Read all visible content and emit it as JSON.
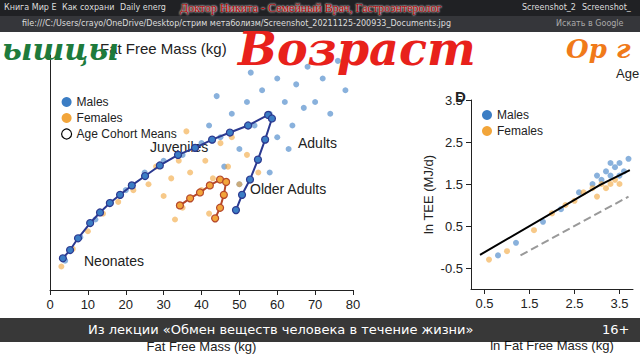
{
  "chart_data": [
    {
      "type": "scatter",
      "title": "Fat Free Mass (kg)",
      "xlabel": "Fat Free Mass (kg)",
      "xlim": [
        0,
        80
      ],
      "xticks": [
        0,
        10,
        20,
        30,
        40,
        50,
        60,
        70,
        80
      ],
      "ylim": [
        0,
        20
      ],
      "tick_labels": "x",
      "grid": false,
      "legend": "top-left",
      "annotations": [
        "Juveniles",
        "Adults",
        "Older Adults",
        "Neonates"
      ],
      "series": [
        {
          "name": "Males",
          "color": "#3b7dc4",
          "values": [
            [
              4,
              2.5
            ],
            [
              8,
              4.5
            ],
            [
              12,
              6
            ],
            [
              16,
              7.5
            ],
            [
              20,
              8.5
            ],
            [
              25,
              10
            ],
            [
              30,
              11
            ],
            [
              35,
              11.5
            ],
            [
              40,
              12.5
            ],
            [
              42,
              14
            ],
            [
              45,
              13
            ],
            [
              48,
              15
            ],
            [
              50,
              12
            ],
            [
              52,
              16
            ],
            [
              54,
              14
            ],
            [
              55,
              11
            ],
            [
              56,
              17
            ],
            [
              58,
              15
            ],
            [
              60,
              13
            ],
            [
              60,
              18
            ],
            [
              62,
              16
            ],
            [
              64,
              14
            ],
            [
              65,
              17.5
            ],
            [
              67,
              15.5
            ],
            [
              68,
              19
            ],
            [
              70,
              16
            ],
            [
              72,
              18
            ],
            [
              74,
              15
            ],
            [
              76,
              19.5
            ],
            [
              78,
              17
            ],
            [
              50,
              9
            ],
            [
              46,
              10.5
            ],
            [
              58,
              10
            ],
            [
              63,
              12
            ],
            [
              44,
              16.5
            ],
            [
              53,
              18.5
            ]
          ]
        },
        {
          "name": "Females",
          "color": "#f2a53a",
          "values": [
            [
              3,
              2
            ],
            [
              6,
              3.5
            ],
            [
              10,
              5
            ],
            [
              14,
              6.5
            ],
            [
              18,
              7.5
            ],
            [
              22,
              8.5
            ],
            [
              26,
              9
            ],
            [
              28,
              10.5
            ],
            [
              30,
              8
            ],
            [
              32,
              9.5
            ],
            [
              34,
              11
            ],
            [
              35,
              7
            ],
            [
              37,
              10
            ],
            [
              38,
              12
            ],
            [
              40,
              8.5
            ],
            [
              41,
              11
            ],
            [
              42,
              6.5
            ],
            [
              43,
              9.5
            ],
            [
              45,
              12.5
            ],
            [
              46,
              8
            ],
            [
              47,
              10.5
            ],
            [
              48,
              13
            ],
            [
              50,
              9
            ],
            [
              52,
              11.5
            ],
            [
              36,
              13.5
            ],
            [
              33,
              6
            ],
            [
              55,
              10
            ]
          ]
        },
        {
          "name": "Age Cohort Means",
          "type": "line",
          "marker": "circle",
          "line_style": "solid",
          "color": "#2b3990",
          "values": [
            [
              3.4,
              2.7
            ],
            [
              5.3,
              3.4
            ],
            [
              7.4,
              4.4
            ],
            [
              10.6,
              5.7
            ],
            [
              13.2,
              6.6
            ],
            [
              15.8,
              7.4
            ],
            [
              18.5,
              8.1
            ],
            [
              21.6,
              8.9
            ],
            [
              25.1,
              9.7
            ],
            [
              29.0,
              10.6
            ],
            [
              33.8,
              11.5
            ],
            [
              38.3,
              12.1
            ],
            [
              42.8,
              12.8
            ],
            [
              47.5,
              13.4
            ],
            [
              52.3,
              14.0
            ],
            [
              57.6,
              14.9
            ],
            [
              58.6,
              14.6
            ],
            [
              56.8,
              12.8
            ],
            [
              54.9,
              11.1
            ],
            [
              52.8,
              9.4
            ],
            [
              50.7,
              8.1
            ],
            [
              49.1,
              6.8
            ]
          ]
        },
        {
          "name": "Age Cohort Means",
          "type": "line",
          "marker": "circle",
          "line_style": "solid",
          "color": "#b5472a",
          "values": [
            [
              34.3,
              7.2
            ],
            [
              37.0,
              7.8
            ],
            [
              39.6,
              8.3
            ],
            [
              42.2,
              8.9
            ],
            [
              44.9,
              9.4
            ],
            [
              46.5,
              9.2
            ],
            [
              45.9,
              8.1
            ],
            [
              44.9,
              7.0
            ],
            [
              43.6,
              6.1
            ]
          ]
        }
      ]
    },
    {
      "type": "scatter",
      "title": "D",
      "xlabel": "ln Fat Free Mass (kg)",
      "ylabel": "ln TEE (MJ/d)",
      "xlim": [
        0.2,
        3.8
      ],
      "xticks": [
        0.5,
        1.5,
        2.5,
        3.5
      ],
      "ylim": [
        -1.0,
        3.5
      ],
      "yticks": [
        -0.5,
        0.5,
        1.5,
        2.5,
        3.5
      ],
      "grid": false,
      "legend": "top-left",
      "series": [
        {
          "name": "Males",
          "color": "#3b7dc4",
          "values": [
            [
              2.9,
              1.5
            ],
            [
              3.0,
              1.7
            ],
            [
              3.1,
              1.6
            ],
            [
              3.2,
              1.8
            ],
            [
              3.3,
              1.7
            ],
            [
              3.4,
              1.9
            ],
            [
              3.5,
              2.0
            ],
            [
              3.6,
              1.8
            ],
            [
              3.7,
              2.1
            ],
            [
              3.3,
              2.0
            ],
            [
              3.5,
              1.7
            ],
            [
              2.6,
              1.3
            ],
            [
              2.2,
              0.9
            ],
            [
              1.8,
              0.6
            ],
            [
              1.2,
              0.1
            ],
            [
              0.8,
              -0.2
            ]
          ]
        },
        {
          "name": "Females",
          "color": "#f2a53a",
          "values": [
            [
              2.7,
              1.3
            ],
            [
              2.9,
              1.4
            ],
            [
              3.0,
              1.2
            ],
            [
              3.1,
              1.5
            ],
            [
              3.2,
              1.4
            ],
            [
              3.3,
              1.5
            ],
            [
              3.4,
              1.6
            ],
            [
              2.5,
              1.1
            ],
            [
              2.3,
              1.0
            ],
            [
              2.0,
              0.8
            ],
            [
              1.6,
              0.4
            ],
            [
              1.0,
              -0.1
            ],
            [
              0.6,
              -0.3
            ],
            [
              3.5,
              1.5
            ]
          ]
        },
        {
          "type": "line",
          "line_style": "solid",
          "color": "#000000",
          "values": [
            [
              0.4,
              -0.19
            ],
            [
              3.07,
              1.48
            ],
            [
              3.73,
              1.83
            ]
          ]
        },
        {
          "type": "line",
          "line_style": "dashed",
          "color": "#999999",
          "values": [
            [
              1.3,
              -0.2
            ],
            [
              3.7,
              1.2
            ]
          ]
        }
      ]
    }
  ],
  "page": {
    "tabs": [
      "Книга Мир Е",
      "Как сохрани",
      "Daily energ",
      "Screenshot_2",
      "Screenshot_"
    ],
    "address": "file:///C:/Users/crayo/OneDrive/Desktop/стрим метаболизм/Screenshot_20211125-200933_Documents.jpg",
    "search": "Искать в Google",
    "header": "Доктор Никита - Семейный Врач, Гастроэнтеролог",
    "handwriting": [
      {
        "text": "ышцы",
        "color": "#1e7b3c"
      },
      {
        "text": "Возраст",
        "color": "#e8211b"
      },
      {
        "text": "Ор г",
        "color": "#f07a1a"
      }
    ],
    "corner_text": "Age",
    "caption": "Из лекции «Обмен веществ человека в течение жизни»",
    "age_rating": "16+"
  }
}
